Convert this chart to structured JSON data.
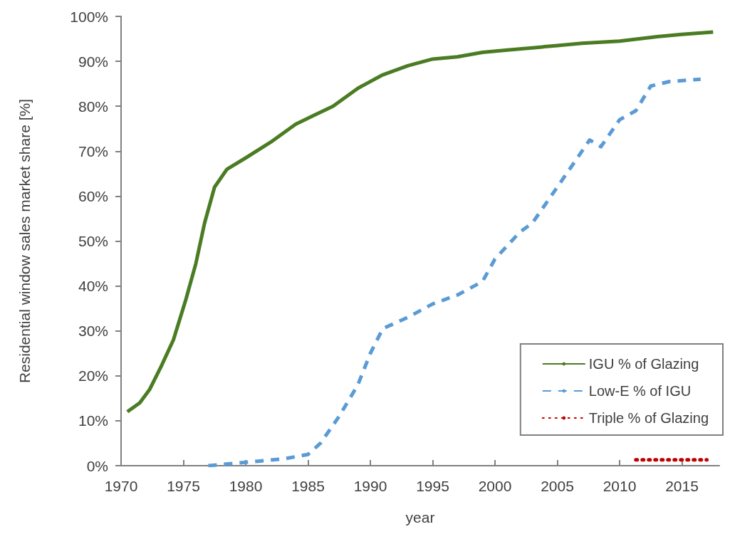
{
  "chart_data": {
    "type": "line",
    "xlabel": "year",
    "ylabel": "Residential window sales market share [%]",
    "xlim": [
      1970,
      2018
    ],
    "xticks": [
      1970,
      1975,
      1980,
      1985,
      1990,
      1995,
      2000,
      2005,
      2010,
      2015
    ],
    "ylim": [
      0,
      100
    ],
    "yticks": [
      {
        "value": 0,
        "label": "0%"
      },
      {
        "value": 10,
        "label": "10%"
      },
      {
        "value": 20,
        "label": "20%"
      },
      {
        "value": 30,
        "label": "30%"
      },
      {
        "value": 40,
        "label": "40%"
      },
      {
        "value": 50,
        "label": "50%"
      },
      {
        "value": 60,
        "label": "60%"
      },
      {
        "value": 70,
        "label": "70%"
      },
      {
        "value": 80,
        "label": "80%"
      },
      {
        "value": 90,
        "label": "90%"
      },
      {
        "value": 100,
        "label": "100%"
      }
    ],
    "grid": false,
    "legend": "bottom right",
    "marker": "none",
    "series": [
      {
        "name": "IGU % of Glazing",
        "color": "#4a7c23",
        "line_style": "solid",
        "x": [
          1970.5,
          1971.5,
          1972.3,
          1973.2,
          1974.2,
          1975.2,
          1976,
          1976.7,
          1977.5,
          1978.5,
          1980,
          1982,
          1984,
          1985.5,
          1987,
          1989,
          1991,
          1993,
          1995,
          1997,
          1999,
          2001,
          2003,
          2005,
          2007,
          2010,
          2013,
          2015,
          2017.5
        ],
        "values": [
          12,
          14,
          17,
          22,
          28,
          37,
          45,
          54,
          62,
          66,
          68.5,
          72,
          76,
          78,
          80,
          84,
          87,
          89,
          90.5,
          91,
          92,
          92.5,
          93,
          93.5,
          94,
          94.5,
          95.5,
          96,
          96.5
        ]
      },
      {
        "name": "Low-E % of IGU",
        "color": "#5b9bd5",
        "line_style": "dashed",
        "x": [
          1977,
          1979,
          1981,
          1983,
          1985,
          1986,
          1987.5,
          1989,
          1990,
          1991,
          1993,
          1995,
          1997,
          1999,
          2000,
          2002,
          2003,
          2005,
          2007.6,
          2008.5,
          2010,
          2011.3,
          2012.5,
          2014,
          2016.5
        ],
        "values": [
          0,
          0.5,
          1,
          1.5,
          2.5,
          5,
          11,
          18,
          25,
          30.5,
          33,
          36,
          38,
          41,
          46,
          52,
          54,
          62,
          72.5,
          71,
          77,
          79,
          84.5,
          85.5,
          86
        ]
      },
      {
        "name": "Triple % of Glazing",
        "color": "#c00000",
        "line_style": "dotted",
        "x": [
          2011.3,
          2017
        ],
        "values": [
          1.3,
          1.3
        ]
      }
    ]
  }
}
